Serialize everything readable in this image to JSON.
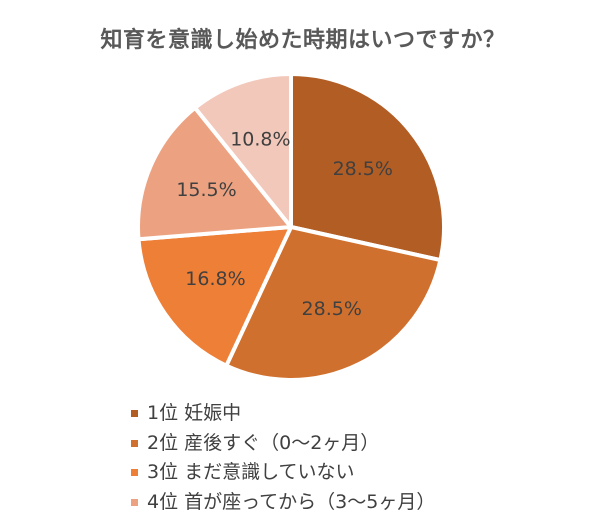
{
  "chart_data": {
    "type": "pie",
    "title": "知育を意識し始めた時期はいつですか？",
    "slices": [
      {
        "label": "1位 妊娠中",
        "value": 28.5,
        "display": "28.5%",
        "color": "#B25D24"
      },
      {
        "label": "2位 産後すぐ（0〜2ヶ月）",
        "value": 28.5,
        "display": "28.5%",
        "color": "#D0702E"
      },
      {
        "label": "3位 まだ意識していない",
        "value": 16.8,
        "display": "16.8%",
        "color": "#EE7F37"
      },
      {
        "label": "4位 首が座ってから（3〜5ヶ月）",
        "value": 15.5,
        "display": "15.5%",
        "color": "#ECA281"
      },
      {
        "label": "",
        "value": 10.8,
        "display": "10.8%",
        "color": "#F2C8BA"
      }
    ],
    "legend_position": "bottom"
  }
}
